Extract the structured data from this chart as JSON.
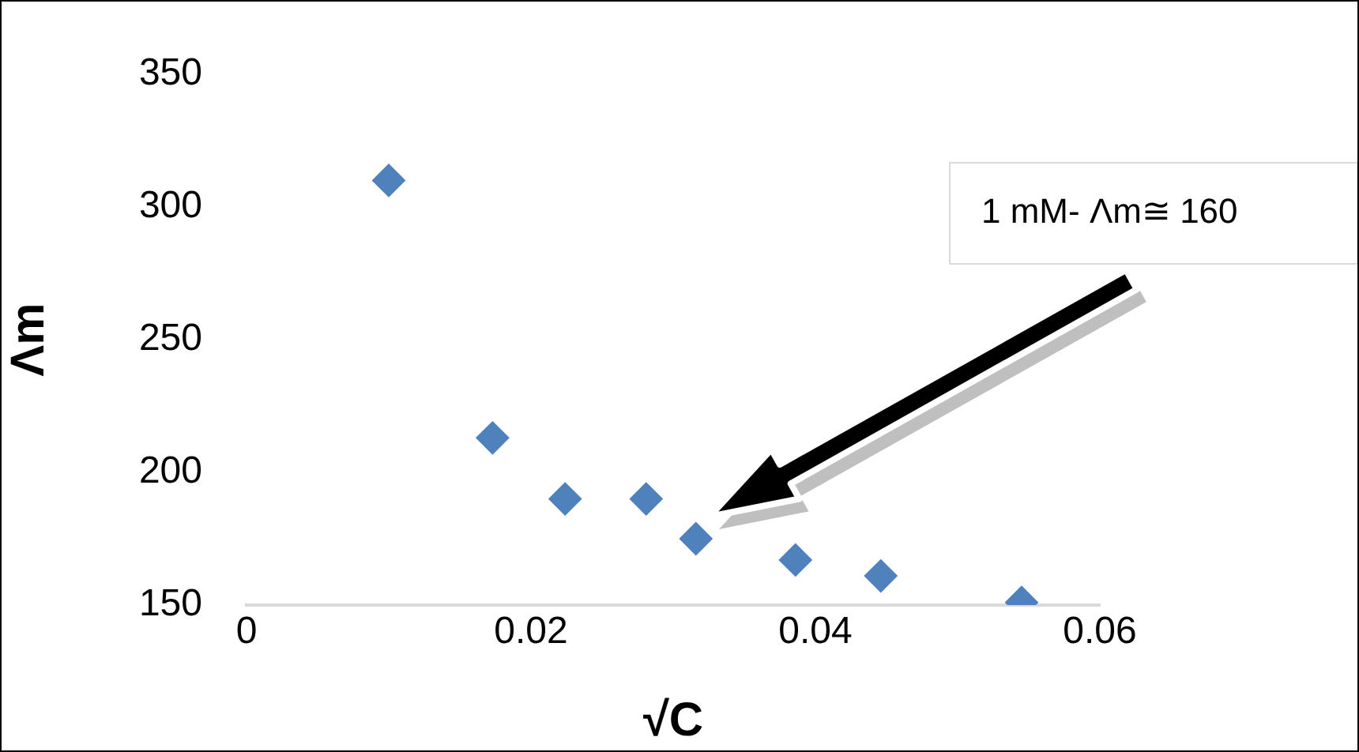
{
  "chart_data": {
    "type": "scatter",
    "xlabel": "√C",
    "ylabel": "Λm",
    "x": [
      0.01,
      0.0173,
      0.0224,
      0.0281,
      0.0316,
      0.0386,
      0.0446,
      0.0545
    ],
    "series": [
      {
        "color": "#4f81bd",
        "values": [
          310,
          213,
          190,
          190,
          175,
          167,
          161,
          151
        ]
      }
    ],
    "xlim": [
      0,
      0.06
    ],
    "xticks": [
      0,
      0.02,
      0.04,
      0.06
    ],
    "ylim": [
      150,
      350
    ],
    "yticks": [
      150,
      200,
      250,
      300,
      350
    ],
    "grid": false,
    "legend": false,
    "marker": "diamond",
    "annotations": [
      "1 mM- Λm≅ 160"
    ]
  }
}
